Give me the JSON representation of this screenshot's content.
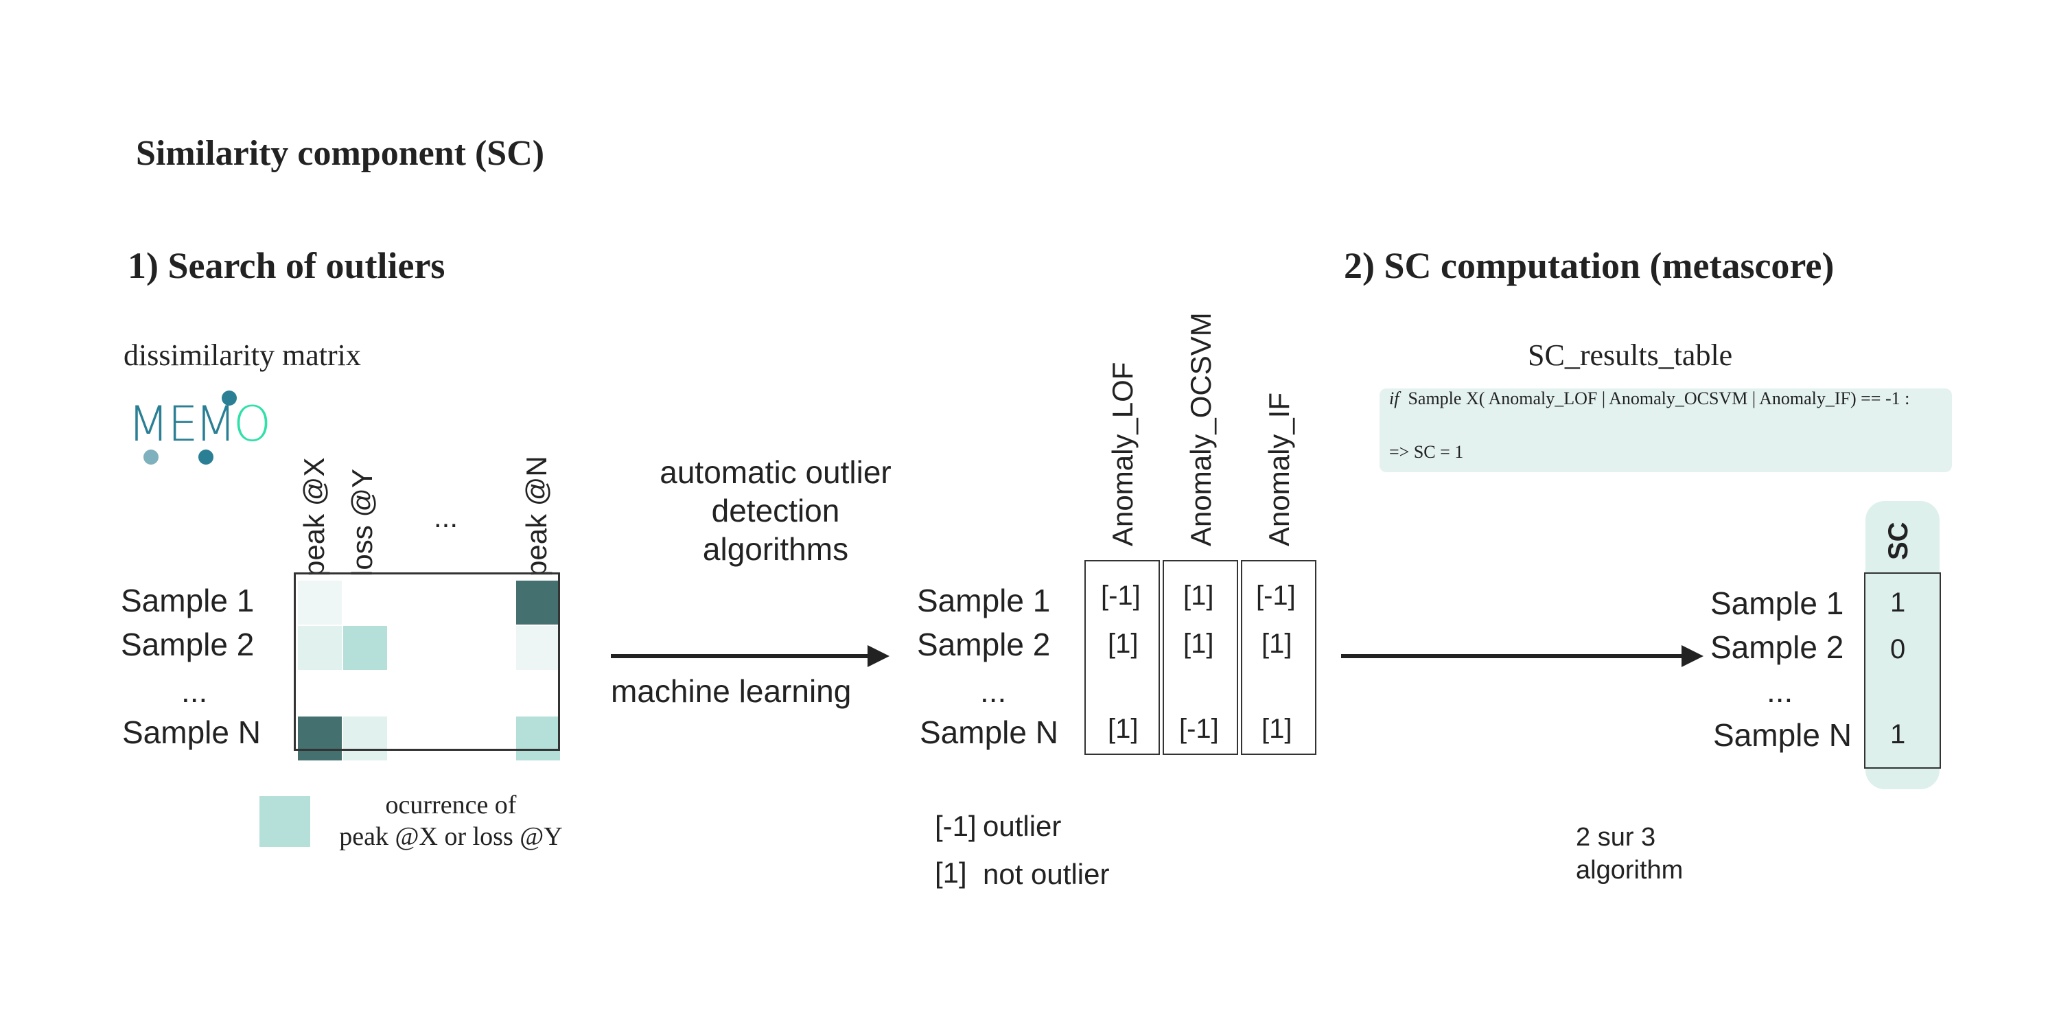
{
  "title": "Similarity component (SC)",
  "section1": "1) Search of  outliers",
  "section2": "2) SC computation (metascore)",
  "dissimilarity_label": "dissimilarity matrix",
  "logo_text": "MEMO",
  "matrix": {
    "columns": [
      "peak @X",
      "loss @Y",
      "...",
      "peak @N"
    ],
    "rows": [
      "Sample 1",
      "Sample 2",
      "...",
      "Sample N"
    ],
    "colors": {
      "dark": "#44706f",
      "light": "#b5e0da",
      "faint": "#e8f4f1"
    }
  },
  "legend_occurrence": [
    "ocurrence of",
    "peak @X or loss @Y"
  ],
  "algorithms_label": [
    "automatic outlier",
    "detection",
    "algorithms"
  ],
  "ml_label": "machine learning",
  "anomaly": {
    "columns": [
      "Anomaly_LOF",
      "Anomaly_OCSVM",
      "Anomaly_IF"
    ],
    "rows": [
      "Sample 1",
      "Sample 2",
      "...",
      "Sample N"
    ],
    "values": [
      [
        "[-1]",
        "[1]",
        "[-1]"
      ],
      [
        "[1]",
        "[1]",
        "[1]"
      ],
      [
        "[1]",
        "[-1]",
        "[1]"
      ]
    ]
  },
  "outlier_legend": {
    "outlier_code": "[-1]",
    "outlier_text": "outlier",
    "not_code": "[1]",
    "not_text": "not outlier"
  },
  "results_table_label": "SC_results_table",
  "code": {
    "if_kw": "if",
    "line1": "Sample X( Anomaly_LOF | Anomaly_OCSVM | Anomaly_IF) == -1 :",
    "line2": "=> SC = 1"
  },
  "sc": {
    "header": "SC",
    "rows": [
      "Sample 1",
      "Sample 2",
      "...",
      "Sample N"
    ],
    "values": [
      "1",
      "0",
      "1"
    ]
  },
  "note": [
    "2 sur 3",
    "algorithm"
  ]
}
